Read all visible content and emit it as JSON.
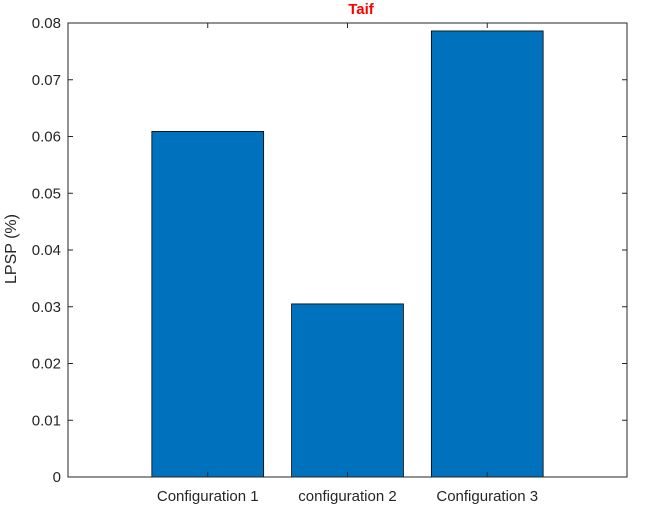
{
  "chart_data": {
    "type": "bar",
    "title": "Taif",
    "title_color": "#ff0000",
    "xlabel": "",
    "ylabel": "LPSP (%)",
    "categories": [
      "Configuration 1",
      "configuration 2",
      "Configuration 3"
    ],
    "values": [
      0.0609,
      0.0305,
      0.0786
    ],
    "ylim": [
      0,
      0.08
    ],
    "xlim": [
      0,
      4
    ],
    "yticks": [
      0,
      0.01,
      0.02,
      0.03,
      0.04,
      0.05,
      0.06,
      0.07,
      0.08
    ],
    "ytick_labels": [
      "0",
      "0.01",
      "0.02",
      "0.03",
      "0.04",
      "0.05",
      "0.06",
      "0.07",
      "0.08"
    ],
    "bar_color": "#0072bd",
    "bar_edge_color": "#000000",
    "grid": false,
    "box": true
  }
}
